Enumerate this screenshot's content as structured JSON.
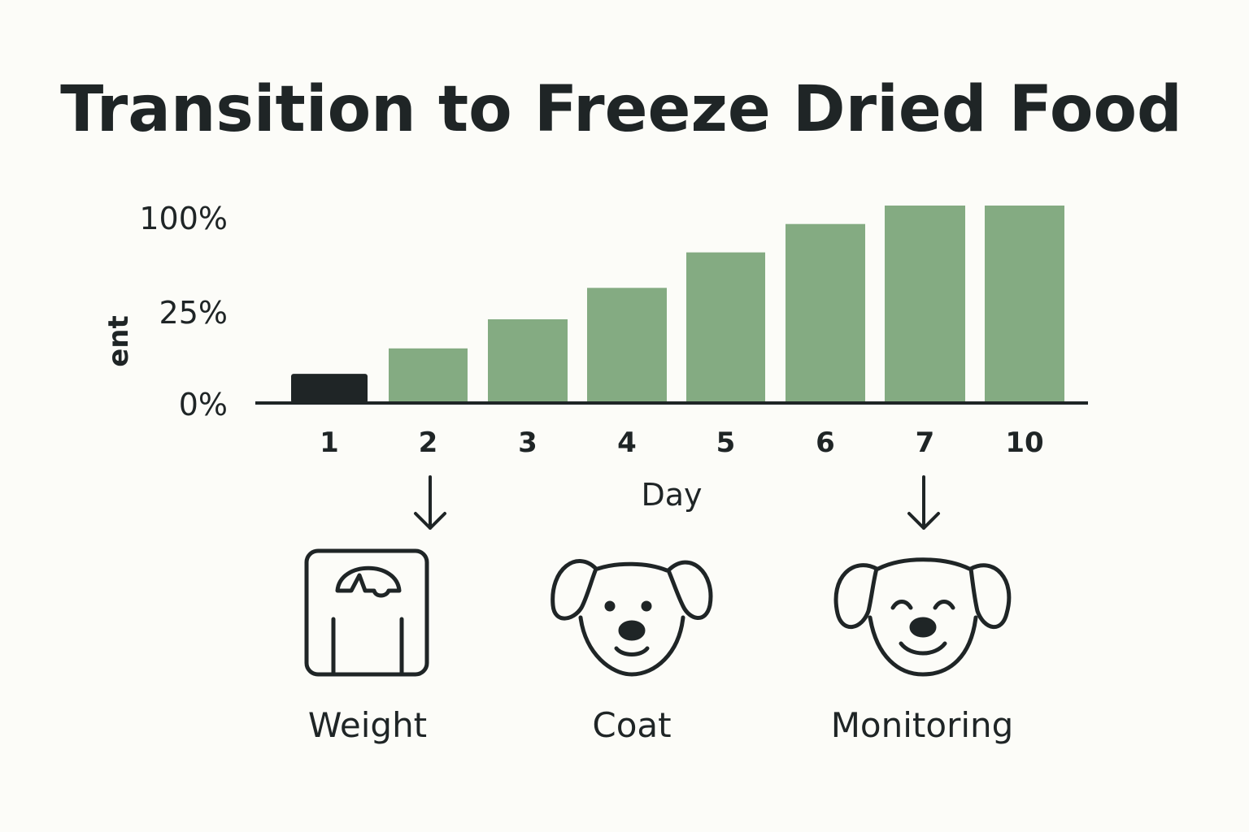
{
  "chart_data": {
    "type": "bar",
    "title": "Transition to Freeze Dried Food",
    "xlabel": "Day",
    "ylabel": "ent",
    "categories": [
      "1",
      "2",
      "3",
      "4",
      "5",
      "6",
      "7",
      "10"
    ],
    "values": [
      8,
      15,
      23,
      42,
      67,
      87,
      100,
      100
    ],
    "yticks": [
      "0%",
      "25%",
      "100%"
    ],
    "ytick_values": [
      0,
      25,
      100
    ],
    "grid": false,
    "colors": {
      "highlight": "#1f2526",
      "bars": "#84ab82",
      "text": "#1f2526",
      "background": "#fcfcf8"
    },
    "highlight_index": 0
  },
  "icons": [
    {
      "name": "scale-icon",
      "label": "Weight"
    },
    {
      "name": "dog-icon",
      "label": "Coat"
    },
    {
      "name": "happy-dog-icon",
      "label": "Monitoring"
    }
  ]
}
